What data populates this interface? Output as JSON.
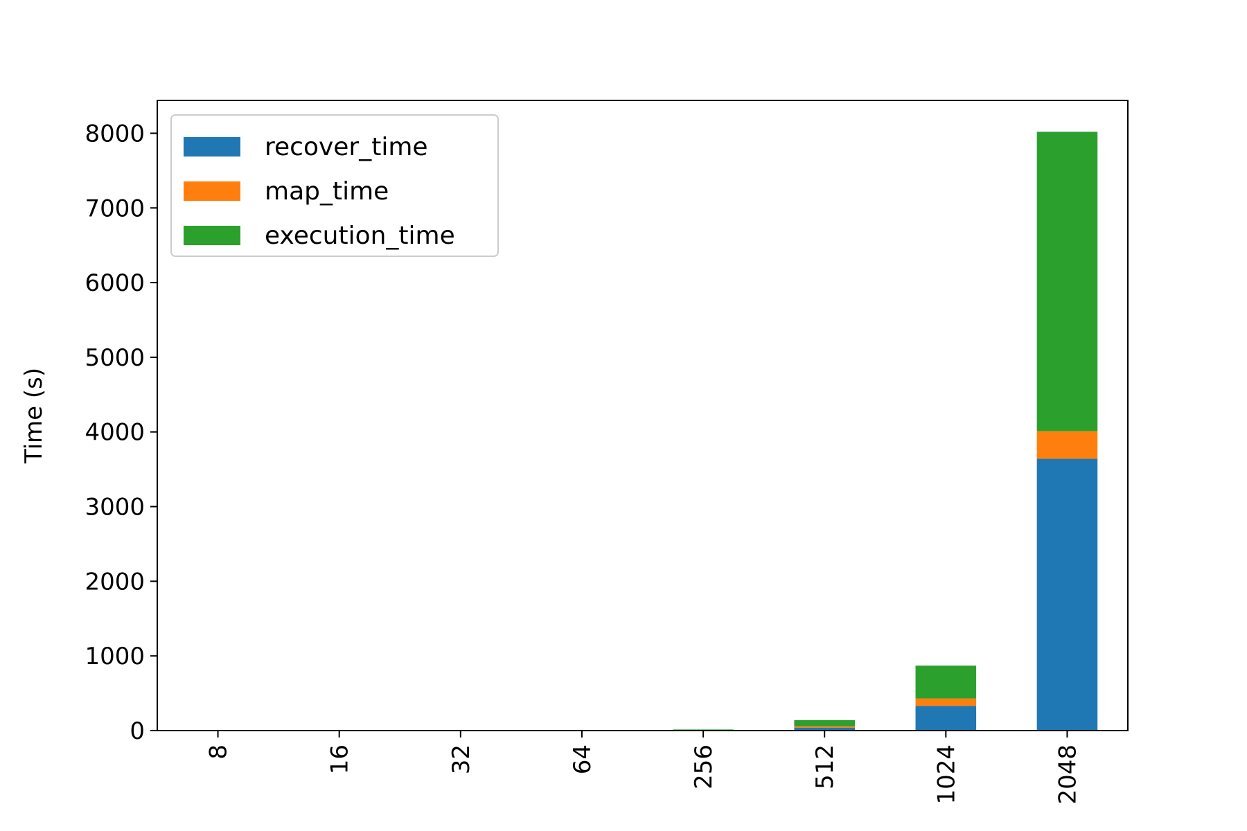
{
  "chart_data": {
    "type": "bar",
    "stacked": true,
    "title": "",
    "xlabel": "",
    "ylabel": "Time (s)",
    "categories": [
      "8",
      "16",
      "32",
      "64",
      "256",
      "512",
      "1024",
      "2048"
    ],
    "series": [
      {
        "name": "recover_time",
        "color": "#1f77b4",
        "values": [
          0,
          0,
          0,
          0,
          3,
          40,
          330,
          3640
        ]
      },
      {
        "name": "map_time",
        "color": "#ff7f0e",
        "values": [
          0,
          0,
          0,
          0,
          2,
          20,
          100,
          370
        ]
      },
      {
        "name": "execution_time",
        "color": "#2ca02c",
        "values": [
          0,
          0,
          0,
          0,
          10,
          80,
          440,
          4010
        ]
      }
    ],
    "ylim": [
      0,
      8440
    ],
    "yticks": [
      "0",
      "1000",
      "2000",
      "3000",
      "4000",
      "5000",
      "6000",
      "7000",
      "8000"
    ],
    "legend": {
      "position": "top-left",
      "entries": [
        "recover_time",
        "map_time",
        "execution_time"
      ]
    },
    "grid": false
  }
}
